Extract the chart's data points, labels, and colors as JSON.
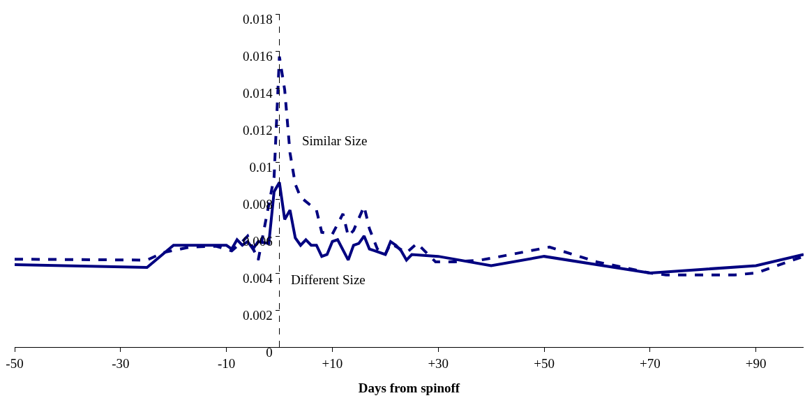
{
  "chart_data": {
    "type": "line",
    "xlabel": "Days from spinoff",
    "xlim": [
      -50,
      99
    ],
    "xticks": [
      {
        "value": -50,
        "label": "-50"
      },
      {
        "value": -30,
        "label": "-30"
      },
      {
        "value": -10,
        "label": "-10"
      },
      {
        "value": 10,
        "label": "+10"
      },
      {
        "value": 30,
        "label": "+30"
      },
      {
        "value": 50,
        "label": "+50"
      },
      {
        "value": 70,
        "label": "+70"
      },
      {
        "value": 90,
        "label": "+90"
      }
    ],
    "ylim": [
      0,
      0.018
    ],
    "yticks": [
      0,
      0.002,
      0.004,
      0.006,
      0.008,
      0.01,
      0.012,
      0.014,
      0.016,
      0.018
    ],
    "grid": false,
    "legend": false,
    "marker": "none",
    "ref_lines": [
      {
        "axis": "x",
        "value": 0,
        "label": null,
        "color": "#000000",
        "line_style": "dashed"
      }
    ],
    "series": [
      {
        "name": "Similar Size",
        "color": "#000080",
        "line_style": "dashed",
        "x": [
          -50,
          -25,
          -22,
          -17,
          -12,
          -9,
          -7,
          -6,
          -4,
          -1,
          0,
          1,
          1.5,
          2,
          3,
          4,
          7,
          8,
          10,
          12,
          13,
          14,
          16,
          17,
          18.5,
          20,
          21,
          24,
          26,
          29.5,
          33,
          38,
          40,
          51,
          60,
          70,
          73,
          86,
          90,
          99
        ],
        "values": [
          0.00475,
          0.0047,
          0.0051,
          0.0054,
          0.00545,
          0.0052,
          0.0057,
          0.006,
          0.0047,
          0.0092,
          0.0157,
          0.0139,
          0.0122,
          0.0105,
          0.0088,
          0.0081,
          0.0074,
          0.0062,
          0.0061,
          0.0072,
          0.006,
          0.0063,
          0.0076,
          0.0064,
          0.0053,
          0.005,
          0.0056,
          0.0051,
          0.0056,
          0.0046,
          0.0046,
          0.0047,
          0.0048,
          0.0054,
          0.0046,
          0.004,
          0.0039,
          0.0039,
          0.004,
          0.0049
        ]
      },
      {
        "name": "Different Size",
        "color": "#000080",
        "line_style": "solid",
        "x": [
          -50,
          -25,
          -20,
          -10,
          -9,
          -8,
          -7,
          -6,
          -5,
          -4,
          -2,
          -1,
          0,
          1,
          2,
          3,
          4,
          5,
          6,
          7,
          8,
          9,
          10,
          11,
          13,
          14,
          15,
          16,
          17,
          18,
          20,
          21,
          22,
          23,
          24,
          25,
          30,
          40,
          50,
          70,
          80,
          90,
          99
        ],
        "values": [
          0.00445,
          0.0043,
          0.0055,
          0.0055,
          0.0053,
          0.0058,
          0.0055,
          0.0057,
          0.0053,
          0.0057,
          0.0056,
          0.0084,
          0.0089,
          0.0069,
          0.0074,
          0.0059,
          0.0055,
          0.0058,
          0.0055,
          0.0055,
          0.0049,
          0.005,
          0.0057,
          0.0058,
          0.0047,
          0.0055,
          0.0056,
          0.006,
          0.0053,
          0.0052,
          0.005,
          0.0057,
          0.0055,
          0.0052,
          0.0047,
          0.005,
          0.0049,
          0.0044,
          0.0049,
          0.004,
          0.0042,
          0.0044,
          0.005
        ]
      }
    ]
  }
}
